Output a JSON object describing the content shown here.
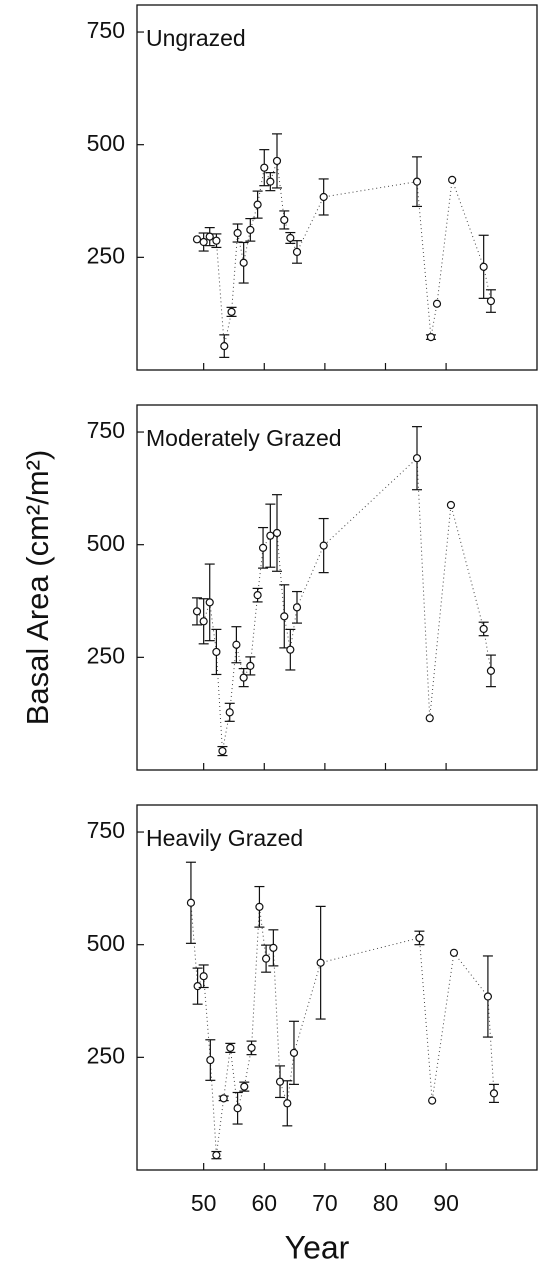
{
  "chart_data": [
    {
      "type": "scatter",
      "title": "Ungrazed",
      "x": [
        48.9,
        50,
        51,
        52.1,
        53.4,
        54.6,
        55.6,
        56.6,
        57.7,
        58.9,
        60,
        61,
        62.1,
        63.3,
        64.3,
        65.4,
        69.8,
        85.2,
        87.5,
        88.5,
        91,
        96.2,
        97.4
      ],
      "values": [
        290,
        284,
        296,
        287,
        53,
        129,
        304,
        238,
        311,
        367,
        449,
        418,
        464,
        333,
        293,
        262,
        384,
        418,
        73,
        147,
        422,
        229,
        153
      ],
      "errors": [
        0,
        20,
        20,
        15,
        25,
        10,
        20,
        45,
        25,
        30,
        40,
        20,
        60,
        20,
        12,
        25,
        40,
        55,
        5,
        0,
        0,
        70,
        25
      ],
      "xlim": [
        39,
        105
      ],
      "ylim": [
        0,
        810
      ],
      "xticks": [
        50,
        60,
        70,
        80,
        90
      ],
      "yticks": [
        250,
        500,
        750
      ]
    },
    {
      "type": "scatter",
      "title": "Moderately Grazed",
      "ylabel": "Basal Area (cm²/m²)",
      "x": [
        48.9,
        50,
        51,
        52.1,
        53.1,
        54.3,
        55.4,
        56.6,
        57.7,
        58.9,
        59.8,
        61,
        62.1,
        63.3,
        64.3,
        65.4,
        69.8,
        85.2,
        87.3,
        90.8,
        96.2,
        97.4
      ],
      "values": [
        352,
        330,
        372,
        262,
        42,
        128,
        278,
        205,
        231,
        388,
        493,
        520,
        526,
        341,
        267,
        361,
        498,
        692,
        115,
        588,
        313,
        220
      ],
      "errors": [
        30,
        50,
        85,
        50,
        10,
        20,
        40,
        20,
        20,
        15,
        45,
        70,
        85,
        70,
        45,
        35,
        60,
        70,
        0,
        0,
        15,
        35
      ],
      "xlim": [
        39,
        105
      ],
      "ylim": [
        0,
        810
      ],
      "xticks": [
        50,
        60,
        70,
        80,
        90
      ],
      "yticks": [
        250,
        500,
        750
      ]
    },
    {
      "type": "scatter",
      "title": "Heavily Grazed",
      "xlabel": "Year",
      "x": [
        47.9,
        49,
        50,
        51.1,
        52.1,
        53.3,
        54.4,
        55.6,
        56.7,
        57.9,
        59.2,
        60.3,
        61.5,
        62.6,
        63.8,
        64.9,
        69.3,
        85.6,
        87.7,
        91.3,
        96.9,
        97.9
      ],
      "values": [
        593,
        408,
        430,
        244,
        33,
        159,
        271,
        137,
        185,
        271,
        584,
        469,
        493,
        196,
        148,
        260,
        460,
        515,
        154,
        482,
        385,
        170
      ],
      "errors": [
        90,
        40,
        25,
        45,
        8,
        5,
        10,
        35,
        10,
        15,
        45,
        30,
        40,
        35,
        50,
        70,
        125,
        15,
        0,
        0,
        90,
        20
      ],
      "xlim": [
        39,
        105
      ],
      "ylim": [
        0,
        810
      ],
      "xticks": [
        50,
        60,
        70,
        80,
        90
      ],
      "yticks": [
        250,
        500,
        750
      ]
    }
  ]
}
